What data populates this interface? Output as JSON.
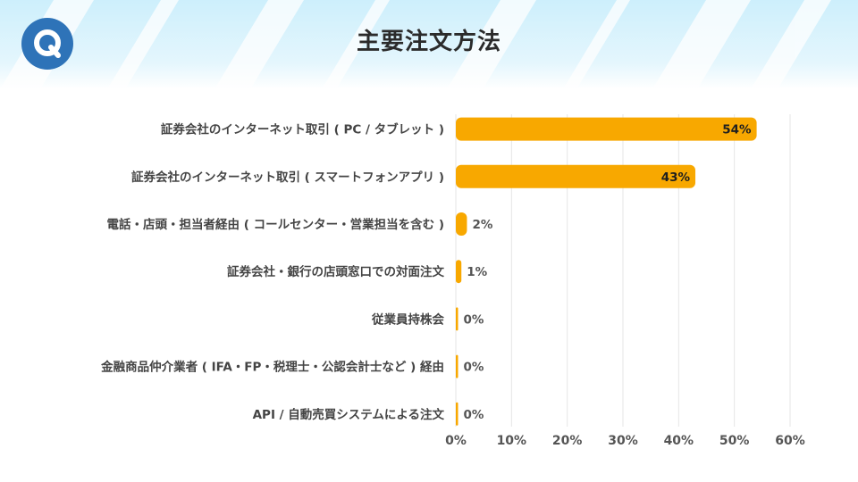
{
  "title": "主要注文方法",
  "logo_letter": "Q",
  "colors": {
    "bar": "#F8A800",
    "logo": "#2E73B8",
    "grid": "#E6E6E6",
    "banner": "#CDEFFC"
  },
  "chart_data": {
    "type": "bar",
    "orientation": "horizontal",
    "title": "主要注文方法",
    "categories": [
      "証券会社のインターネット取引 ( PC / タブレット )",
      "証券会社のインターネット取引 ( スマートフォンアプリ )",
      "電話・店頭・担当者経由 ( コールセンター・営業担当を含む )",
      "証券会社・銀行の店頭窓口での対面注文",
      "従業員持株会",
      "金融商品仲介業者 ( IFA・FP・税理士・公認会計士など ) 経由",
      "API / 自動売買システムによる注文"
    ],
    "values": [
      54,
      43,
      2,
      1,
      0,
      0,
      0
    ],
    "value_labels": [
      "54%",
      "43%",
      "2%",
      "1%",
      "0%",
      "0%",
      "0%"
    ],
    "xlim": [
      0,
      60
    ],
    "x_ticks": [
      "0%",
      "10%",
      "20%",
      "30%",
      "40%",
      "50%",
      "60%"
    ],
    "grid": true,
    "legend": "none"
  }
}
